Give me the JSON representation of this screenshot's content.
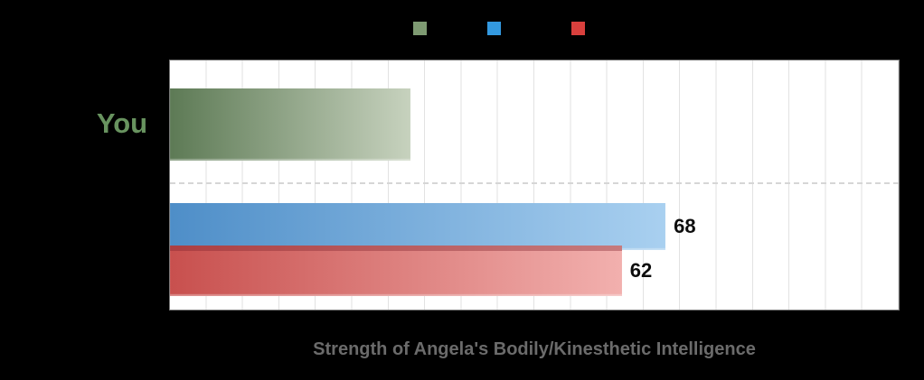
{
  "caption_color": "#6b6b6b",
  "background_color": "#000000",
  "plot": {
    "background": "#ffffff",
    "border_color": "#787878",
    "gridline_color": "#e2e2e2"
  },
  "legend": {
    "items": [
      {
        "name": "green-series-swatch",
        "color": "#7e9a72"
      },
      {
        "name": "blue-series-swatch",
        "color": "#3399e0"
      },
      {
        "name": "red-series-swatch",
        "color": "#d9403d"
      }
    ]
  },
  "chart_data": {
    "type": "bar",
    "orientation": "horizontal",
    "caption": "Strength of Angela's Bodily/Kinesthetic Intelligence",
    "xlim": [
      0,
      100
    ],
    "gridline_step": 5,
    "grid": true,
    "legend_position": "top",
    "rows": [
      {
        "label": "You",
        "label_color": "#68935f",
        "bars": [
          {
            "series": "green",
            "value": 33,
            "value_label": "",
            "color_start": "#5d7a55",
            "color_end": "#c7d2be"
          }
        ]
      },
      {
        "label": "",
        "label_color": "#000000",
        "bars": [
          {
            "series": "blue",
            "value": 68,
            "value_label": "68",
            "color_start": "#4e8ec8",
            "color_end": "#a9d0f0"
          },
          {
            "series": "red",
            "value": 62,
            "value_label": "62",
            "color_start": "#c8504e",
            "color_end": "#f2b0ae"
          }
        ]
      }
    ]
  }
}
